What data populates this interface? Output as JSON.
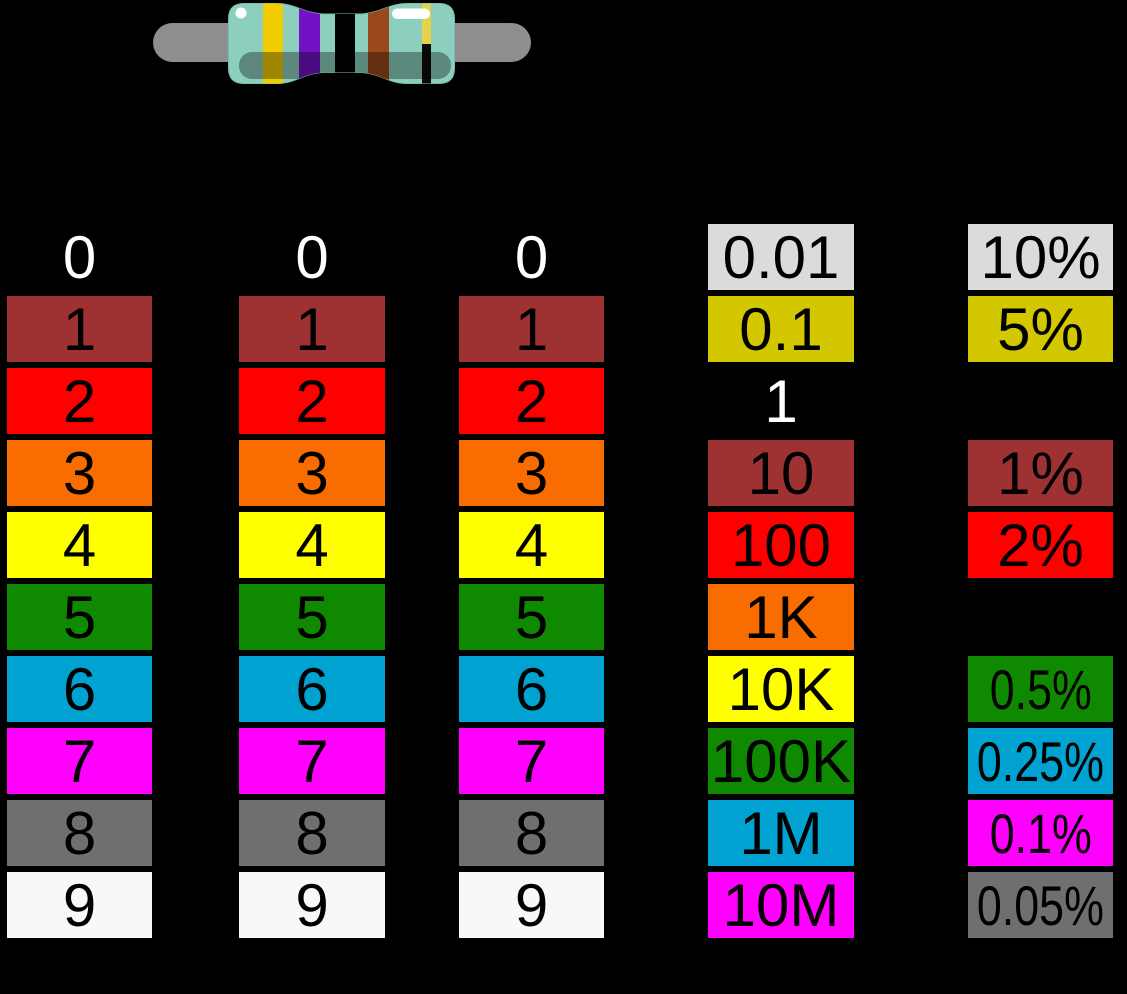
{
  "palette": {
    "black": "#000000",
    "brown": "#9E3232",
    "red": "#FE0000",
    "orange": "#F96D00",
    "yellow": "#FFFF00",
    "green": "#0F8A00",
    "blue": "#00A2D2",
    "violet": "#FF00FF",
    "grey": "#6F6F6F",
    "white": "#F8F8F8",
    "gold": "#D3C700",
    "silver": "#DBDBDB"
  },
  "text_colors": {
    "on_dark": "#FFFFFF",
    "on_color": "#000000"
  },
  "resistor": {
    "body_color": "#8CCFBF",
    "body_outline": "#7ABFAE",
    "lead_color": "#8E8E8E",
    "highlight_color": "#FFFFFF",
    "bands": [
      {
        "name": "yellow",
        "hex": "#F0CC00"
      },
      {
        "name": "violet",
        "hex": "#7113C4"
      },
      {
        "name": "black",
        "hex": "#000000"
      },
      {
        "name": "brown",
        "hex": "#99491B"
      },
      {
        "name": "gold",
        "hex": "#E5D24A"
      }
    ]
  },
  "grid": {
    "columns": [
      {
        "id": "digit-1",
        "cells": [
          {
            "row": 0,
            "label": "0",
            "color": "black"
          },
          {
            "row": 1,
            "label": "1",
            "color": "brown"
          },
          {
            "row": 2,
            "label": "2",
            "color": "red"
          },
          {
            "row": 3,
            "label": "3",
            "color": "orange"
          },
          {
            "row": 4,
            "label": "4",
            "color": "yellow"
          },
          {
            "row": 5,
            "label": "5",
            "color": "green"
          },
          {
            "row": 6,
            "label": "6",
            "color": "blue"
          },
          {
            "row": 7,
            "label": "7",
            "color": "violet"
          },
          {
            "row": 8,
            "label": "8",
            "color": "grey"
          },
          {
            "row": 9,
            "label": "9",
            "color": "white"
          }
        ]
      },
      {
        "id": "digit-2",
        "cells": [
          {
            "row": 0,
            "label": "0",
            "color": "black"
          },
          {
            "row": 1,
            "label": "1",
            "color": "brown"
          },
          {
            "row": 2,
            "label": "2",
            "color": "red"
          },
          {
            "row": 3,
            "label": "3",
            "color": "orange"
          },
          {
            "row": 4,
            "label": "4",
            "color": "yellow"
          },
          {
            "row": 5,
            "label": "5",
            "color": "green"
          },
          {
            "row": 6,
            "label": "6",
            "color": "blue"
          },
          {
            "row": 7,
            "label": "7",
            "color": "violet"
          },
          {
            "row": 8,
            "label": "8",
            "color": "grey"
          },
          {
            "row": 9,
            "label": "9",
            "color": "white"
          }
        ]
      },
      {
        "id": "digit-3",
        "cells": [
          {
            "row": 0,
            "label": "0",
            "color": "black"
          },
          {
            "row": 1,
            "label": "1",
            "color": "brown"
          },
          {
            "row": 2,
            "label": "2",
            "color": "red"
          },
          {
            "row": 3,
            "label": "3",
            "color": "orange"
          },
          {
            "row": 4,
            "label": "4",
            "color": "yellow"
          },
          {
            "row": 5,
            "label": "5",
            "color": "green"
          },
          {
            "row": 6,
            "label": "6",
            "color": "blue"
          },
          {
            "row": 7,
            "label": "7",
            "color": "violet"
          },
          {
            "row": 8,
            "label": "8",
            "color": "grey"
          },
          {
            "row": 9,
            "label": "9",
            "color": "white"
          }
        ]
      },
      {
        "id": "multiplier",
        "cells": [
          {
            "row": 0,
            "label": "0.01",
            "color": "silver"
          },
          {
            "row": 1,
            "label": "0.1",
            "color": "gold"
          },
          {
            "row": 2,
            "label": "1",
            "color": "black"
          },
          {
            "row": 3,
            "label": "10",
            "color": "brown"
          },
          {
            "row": 4,
            "label": "100",
            "color": "red"
          },
          {
            "row": 5,
            "label": "1K",
            "color": "orange"
          },
          {
            "row": 6,
            "label": "10K",
            "color": "yellow"
          },
          {
            "row": 7,
            "label": "100K",
            "color": "green"
          },
          {
            "row": 8,
            "label": "1M",
            "color": "blue"
          },
          {
            "row": 9,
            "label": "10M",
            "color": "violet"
          }
        ]
      },
      {
        "id": "tolerance",
        "cells": [
          {
            "row": 0,
            "label": "10%",
            "color": "silver"
          },
          {
            "row": 1,
            "label": "5%",
            "color": "gold"
          },
          {
            "row": 3,
            "label": "1%",
            "color": "brown"
          },
          {
            "row": 4,
            "label": "2%",
            "color": "red"
          },
          {
            "row": 6,
            "label": "0.5%",
            "color": "green",
            "small": true
          },
          {
            "row": 7,
            "label": "0.25%",
            "color": "blue",
            "small": true
          },
          {
            "row": 8,
            "label": "0.1%",
            "color": "violet",
            "small": true
          },
          {
            "row": 9,
            "label": "0.05%",
            "color": "grey",
            "small": true
          }
        ]
      }
    ]
  }
}
